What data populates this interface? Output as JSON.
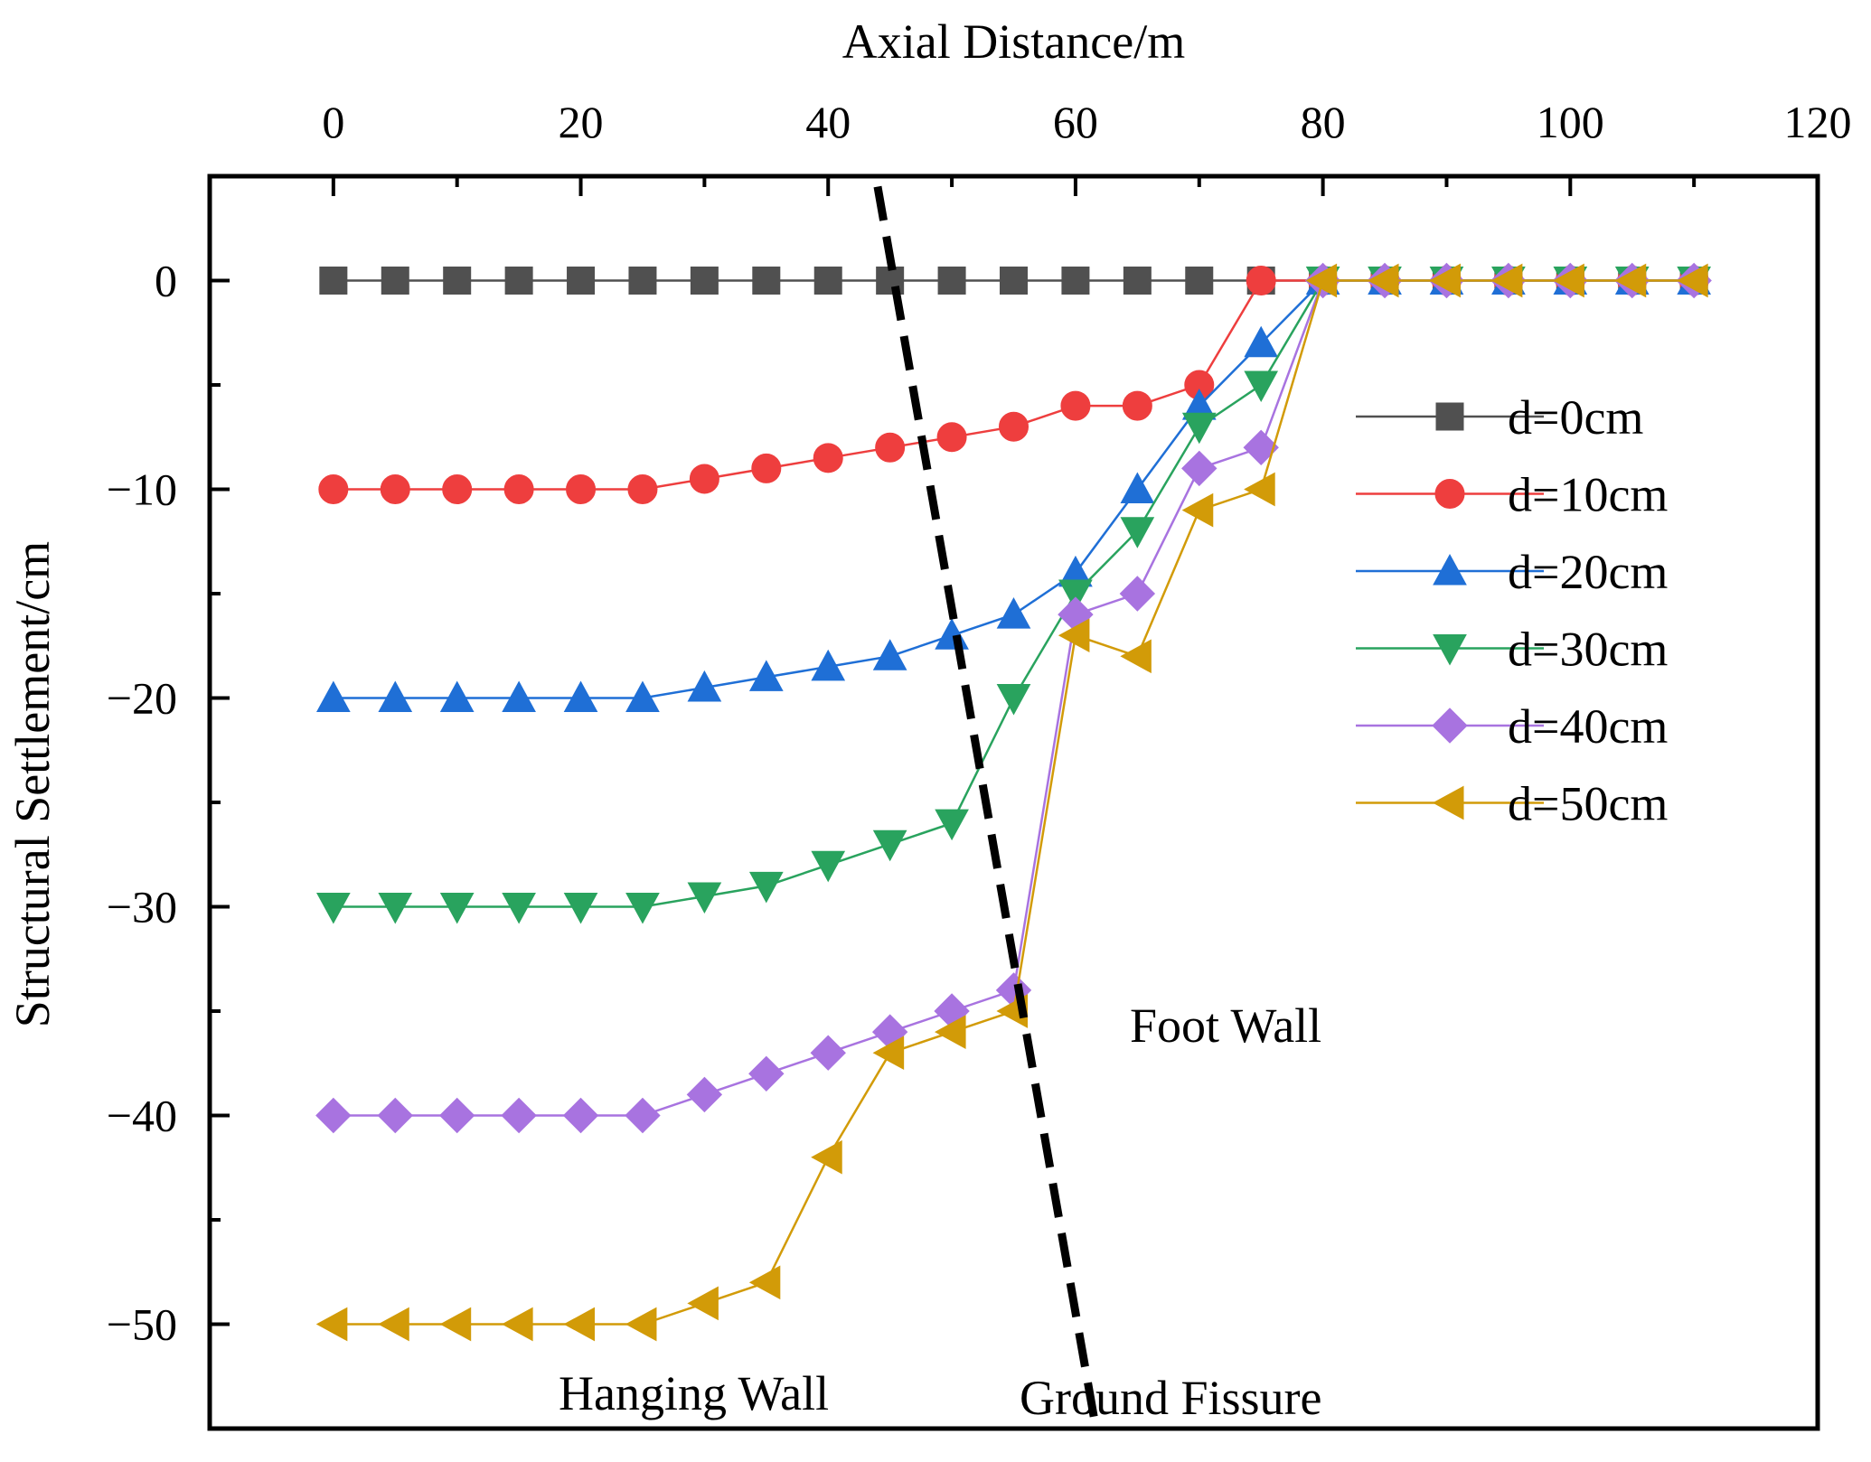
{
  "chart_data": {
    "type": "line",
    "xlabel": "Axial Distance/m",
    "ylabel": "Structural Settlement/cm",
    "xlim": [
      -10,
      120
    ],
    "ylim": [
      -55,
      5
    ],
    "x_ticks": [
      0,
      20,
      40,
      60,
      80,
      100,
      120
    ],
    "y_ticks": [
      0,
      -10,
      -20,
      -30,
      -40,
      -50
    ],
    "x_tick_labels": [
      "0",
      "20",
      "40",
      "60",
      "80",
      "100",
      "120"
    ],
    "y_tick_labels": [
      "0",
      "−10",
      "−20",
      "−30",
      "−40",
      "−50"
    ],
    "x": [
      0,
      5,
      10,
      15,
      20,
      25,
      30,
      35,
      40,
      45,
      50,
      55,
      60,
      65,
      70,
      75,
      80,
      85,
      90,
      95,
      100,
      105,
      110
    ],
    "series": [
      {
        "name": "d=0cm",
        "color": "#505050",
        "marker": "square",
        "values": [
          0,
          0,
          0,
          0,
          0,
          0,
          0,
          0,
          0,
          0,
          0,
          0,
          0,
          0,
          0,
          0,
          0,
          0,
          0,
          0,
          0,
          0,
          0
        ]
      },
      {
        "name": "d=10cm",
        "color": "#ee3e3e",
        "marker": "circle",
        "values": [
          -10,
          -10,
          -10,
          -10,
          -10,
          -10,
          -9.5,
          -9,
          -8.5,
          -8,
          -7.5,
          -7,
          -6,
          -6,
          -5,
          0,
          0,
          0,
          0,
          0,
          0,
          0,
          0
        ]
      },
      {
        "name": "d=20cm",
        "color": "#1f6fd6",
        "marker": "triangle-up",
        "values": [
          -20,
          -20,
          -20,
          -20,
          -20,
          -20,
          -19.5,
          -19,
          -18.5,
          -18,
          -17,
          -16,
          -14,
          -10,
          -6,
          -3,
          0,
          0,
          0,
          0,
          0,
          0,
          0
        ]
      },
      {
        "name": "d=30cm",
        "color": "#29a35e",
        "marker": "triangle-down",
        "values": [
          -30,
          -30,
          -30,
          -30,
          -30,
          -30,
          -29.5,
          -29,
          -28,
          -27,
          -26,
          -20,
          -15,
          -12,
          -7,
          -5,
          0,
          0,
          0,
          0,
          0,
          0,
          0
        ]
      },
      {
        "name": "d=40cm",
        "color": "#a873e0",
        "marker": "diamond",
        "values": [
          -40,
          -40,
          -40,
          -40,
          -40,
          -40,
          -39,
          -38,
          -37,
          -36,
          -35,
          -34,
          -16,
          -15,
          -9,
          -8,
          0,
          0,
          0,
          0,
          0,
          0,
          0
        ]
      },
      {
        "name": "d=50cm",
        "color": "#d29b08",
        "marker": "triangle-left",
        "values": [
          -50,
          -50,
          -50,
          -50,
          -50,
          -50,
          -49,
          -48,
          -42,
          -37,
          -36,
          -35,
          -17,
          -18,
          -11,
          -10,
          0,
          0,
          0,
          0,
          0,
          0,
          0
        ]
      }
    ],
    "fissure_line": {
      "label": "Ground Fissure",
      "x": [
        44,
        61.5
      ],
      "y": [
        4.5,
        -54.5
      ]
    },
    "annotations": {
      "foot_wall": "Foot Wall",
      "hanging_wall": "Hanging Wall",
      "ground_fissure": "Ground Fissure"
    },
    "legend_position": "right"
  }
}
